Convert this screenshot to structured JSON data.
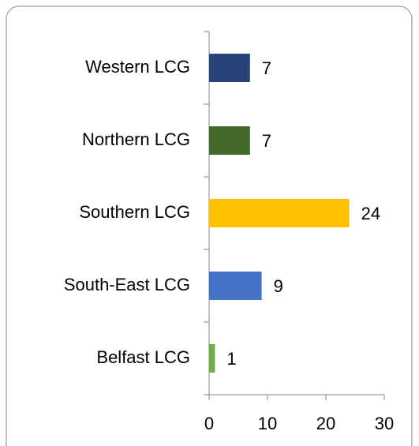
{
  "chart_data": {
    "type": "hbar",
    "categories": [
      "Western LCG",
      "Northern LCG",
      "Southern LCG",
      "South-East LCG",
      "Belfast LCG"
    ],
    "values": [
      7,
      7,
      24,
      9,
      1
    ],
    "colors": [
      "#264478",
      "#43682b",
      "#ffc000",
      "#4472c4",
      "#70ad47"
    ],
    "xlim": [
      0,
      30
    ],
    "xticks": [
      0,
      10,
      20,
      30
    ]
  }
}
